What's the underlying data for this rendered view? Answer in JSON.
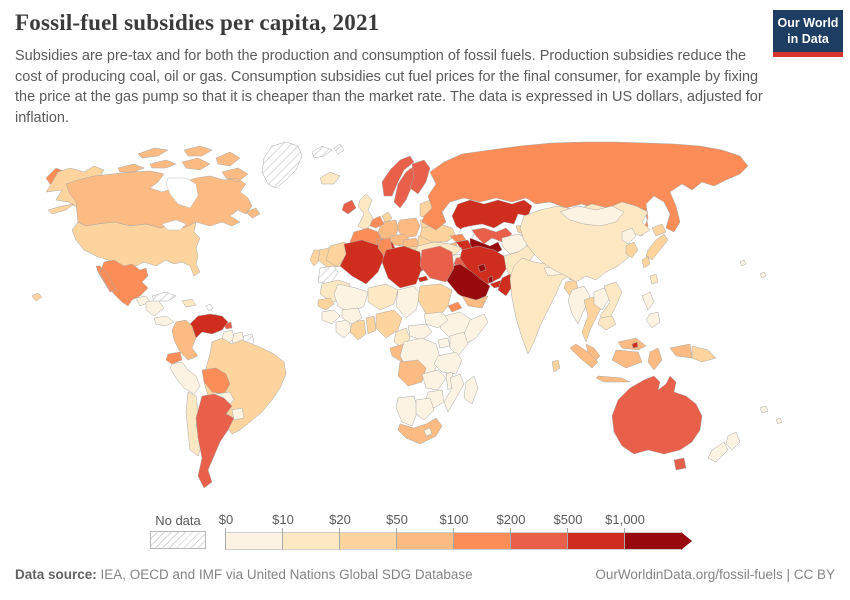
{
  "header": {
    "title": "Fossil-fuel subsidies per capita, 2021",
    "logo_line1": "Our World",
    "logo_line2": "in Data"
  },
  "subtitle": "Subsidies are pre-tax and for both the production and consumption of fossil fuels. Production subsidies reduce the cost of producing coal, oil or gas. Consumption subsidies cut fuel prices for the final consumer, for example by fixing the price at the gas pump so that it is cheaper than the market rate. The data is expressed in US dollars, adjusted for inflation.",
  "legend": {
    "no_data_label": "No data",
    "bins": [
      {
        "label": "$0",
        "color": "#fcf3e2"
      },
      {
        "label": "$10",
        "color": "#fde8c4"
      },
      {
        "label": "$20",
        "color": "#fdd49e"
      },
      {
        "label": "$50",
        "color": "#fdbb84"
      },
      {
        "label": "$100",
        "color": "#fc8d59"
      },
      {
        "label": "$200",
        "color": "#e9604a"
      },
      {
        "label": "$500",
        "color": "#cf2d1d"
      },
      {
        "label": "$1,000",
        "color": "#970b0e"
      }
    ]
  },
  "chart_data": {
    "type": "heatmap",
    "title": "Fossil-fuel subsidies per capita, 2021",
    "unit": "US dollars per capita (inflation adjusted)",
    "legend_position": "bottom",
    "bin_edges": [
      0,
      10,
      20,
      50,
      100,
      200,
      500,
      1000
    ],
    "no_data": [
      "greenland",
      "svalbard",
      "western-sahara",
      "french-guiana",
      "cuba",
      "antilles"
    ]
  },
  "map": {
    "countries": {
      "greenland": 0,
      "svalbard": 0,
      "western-sahara": 0,
      "french-guiana": 0,
      "cuba": 0,
      "antilles": 0,
      "canada": 4,
      "united-states": 3,
      "mexico": 5,
      "guatemala-belize": 1,
      "honduras-nicaragua": 1,
      "costa-rica-panama": 1,
      "hispaniola": 2,
      "trinidad-and-tobago": 6,
      "venezuela": 7,
      "colombia": 4,
      "guyana": 1,
      "suriname": 1,
      "ecuador": 5,
      "peru": 1,
      "brazil": 3,
      "bolivia": 5,
      "paraguay": 1,
      "uruguay": 1,
      "chile": 2,
      "argentina": 6,
      "iceland": 2,
      "ireland": 6,
      "united-kingdom": 2,
      "norway": 6,
      "sweden": 6,
      "finland": 6,
      "denmark": 3,
      "baltic-states": 3,
      "belarus": 3,
      "poland": 4,
      "germany": 4,
      "netherlands-belgium": 5,
      "france": 5,
      "switzerland": 5,
      "austria-czechia": 4,
      "hungary-slovakia": 4,
      "spain": 3,
      "portugal": 3,
      "italy": 7,
      "balkans": 3,
      "greece": 7,
      "romania": 3,
      "bulgaria": 5,
      "ukraine": 3,
      "russia": 5,
      "kazakhstan": 7,
      "uzbekistan": 6,
      "turkmenistan": 8,
      "kyrgyzstan": 3,
      "tajikistan": 2,
      "georgia": 5,
      "azerbaijan": 7,
      "armenia": 4,
      "turkey": 2,
      "syria": 1,
      "levant": 2,
      "iraq": 6,
      "iran": 7,
      "afghanistan": 1,
      "pakistan": 2,
      "kuwait": 8,
      "saudi-arabia": 8,
      "qatar": 8,
      "uae": 7,
      "oman": 7,
      "yemen": 4,
      "india": 2,
      "nepal": 1,
      "bhutan": 4,
      "bangladesh": 3,
      "sri-lanka": 3,
      "myanmar": 1,
      "thailand": 3,
      "laos": 1,
      "vietnam": 2,
      "cambodia": 2,
      "malaysia": 4,
      "brunei": 7,
      "indonesia": 4,
      "papua-new-guinea": 3,
      "philippines": 1,
      "china": 2,
      "mongolia": 1,
      "north-korea": 1,
      "south-korea": 3,
      "japan": 3,
      "taiwan": 2,
      "australia": 6,
      "new-zealand": 1,
      "pacific-islands": 1,
      "morocco": 3,
      "algeria": 7,
      "tunisia": 5,
      "libya": 7,
      "egypt": 6,
      "mauritania": 2,
      "mali": 1,
      "niger": 2,
      "chad": 1,
      "sudan": 3,
      "eritrea": 5,
      "ethiopia": 1,
      "somalia": 1,
      "senegal": 3,
      "guinea": 1,
      "ivory-coast": 1,
      "ghana": 3,
      "burkina-faso": 1,
      "togo-benin": 3,
      "nigeria": 3,
      "cameroon": 2,
      "central-african-republic": 1,
      "south-sudan": 1,
      "gabon-congo": 4,
      "dr-congo": 1,
      "uganda": 1,
      "kenya": 1,
      "tanzania": 1,
      "angola": 4,
      "zambia": 1,
      "malawi": 1,
      "mozambique": 1,
      "zimbabwe": 1,
      "namibia": 1,
      "botswana": 1,
      "south-africa": 4,
      "lesotho": 1,
      "madagascar": 1
    }
  },
  "footer": {
    "source_label": "Data source:",
    "source_text": " IEA, OECD and IMF via United Nations Global SDG Database",
    "credit": "OurWorldinData.org/fossil-fuels | CC BY"
  }
}
